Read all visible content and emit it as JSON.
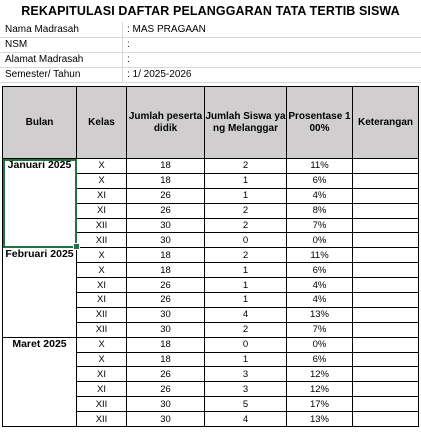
{
  "title": "REKAPITULASI DAFTAR PELANGGARAN TATA TERTIB SISWA",
  "info": [
    {
      "label": "Nama Madrasah",
      "value": ": MAS PRAGAAN"
    },
    {
      "label": "NSM",
      "value": ":"
    },
    {
      "label": "Alamat Madrasah",
      "value": ":"
    },
    {
      "label": "Semester/ Tahun",
      "value": ": 1/ 2025-2026"
    }
  ],
  "headers": [
    "Bulan",
    "Kelas",
    "Jumlah peserta didik",
    "Jumlah Siswa yang Melanggar",
    "Prosentase 100%",
    "Keterangan"
  ],
  "months": [
    {
      "name": "Januari 2025",
      "rows": [
        [
          "X",
          "18",
          "2",
          "11%"
        ],
        [
          "X",
          "18",
          "1",
          "6%"
        ],
        [
          "XI",
          "26",
          "1",
          "4%"
        ],
        [
          "XI",
          "26",
          "2",
          "8%"
        ],
        [
          "XII",
          "30",
          "2",
          "7%"
        ],
        [
          "XII",
          "30",
          "0",
          "0%"
        ]
      ]
    },
    {
      "name": "Februari 2025",
      "rows": [
        [
          "X",
          "18",
          "2",
          "11%"
        ],
        [
          "X",
          "18",
          "1",
          "6%"
        ],
        [
          "XI",
          "26",
          "1",
          "4%"
        ],
        [
          "XI",
          "26",
          "1",
          "4%"
        ],
        [
          "XII",
          "30",
          "4",
          "13%"
        ],
        [
          "XII",
          "30",
          "2",
          "7%"
        ]
      ]
    },
    {
      "name": "Maret 2025",
      "rows": [
        [
          "X",
          "18",
          "0",
          "0%"
        ],
        [
          "X",
          "18",
          "1",
          "6%"
        ],
        [
          "XI",
          "26",
          "3",
          "12%"
        ],
        [
          "XI",
          "26",
          "3",
          "12%"
        ],
        [
          "XII",
          "30",
          "5",
          "17%"
        ],
        [
          "XII",
          "30",
          "4",
          "13%"
        ]
      ]
    }
  ]
}
